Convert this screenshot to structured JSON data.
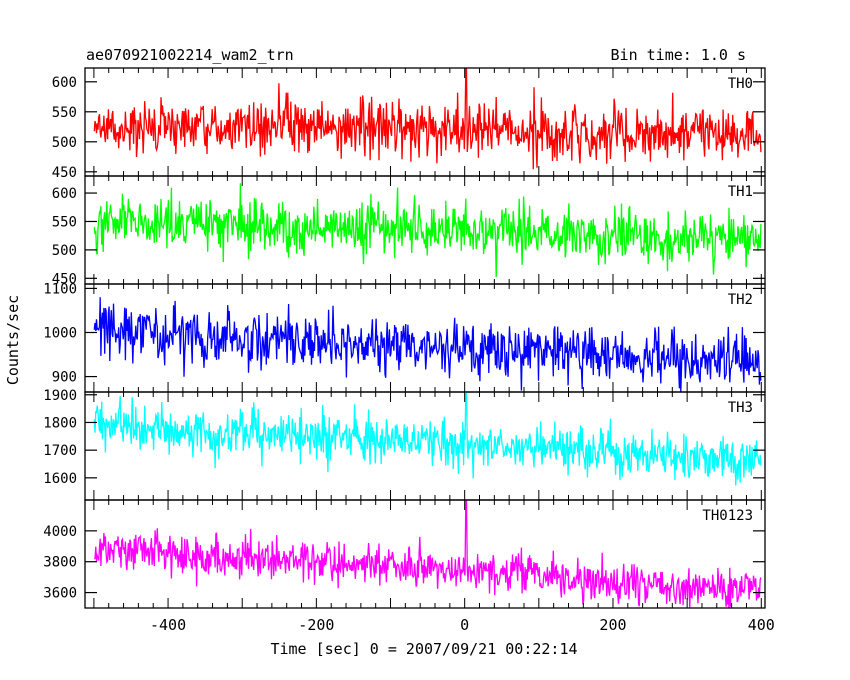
{
  "chart_data": {
    "type": "line",
    "title": "ae070921002214_wam2_trn",
    "bin_time": "Bin time: 1.0 s",
    "xlabel": "Time [sec] 0 = 2007/09/21 00:22:14",
    "ylabel": "Counts/sec",
    "xlim": [
      -512,
      405
    ],
    "x_ticks": [
      -400,
      -200,
      0,
      200,
      400
    ],
    "grid": false,
    "panels": [
      {
        "name": "TH0",
        "color": "#ff0000",
        "ylim": [
          443,
          623
        ],
        "y_ticks": [
          450,
          500,
          550,
          600
        ],
        "mean_start": 530,
        "mean_end": 510,
        "noise": 23,
        "spikes": [
          {
            "x": 2,
            "y": 623
          }
        ]
      },
      {
        "name": "TH1",
        "color": "#00ff00",
        "ylim": [
          440,
          630
        ],
        "y_ticks": [
          450,
          500,
          550,
          600
        ],
        "mean_start": 550,
        "mean_end": 518,
        "noise": 23,
        "spikes": []
      },
      {
        "name": "TH2",
        "color": "#0000ff",
        "ylim": [
          865,
          1110
        ],
        "y_ticks": [
          900,
          1000,
          1100
        ],
        "mean_start": 1005,
        "mean_end": 930,
        "noise": 31,
        "spikes": []
      },
      {
        "name": "TH3",
        "color": "#00ffff",
        "ylim": [
          1520,
          1910
        ],
        "y_ticks": [
          1600,
          1700,
          1800,
          1900
        ],
        "mean_start": 1790,
        "mean_end": 1665,
        "noise": 42,
        "spikes": [
          {
            "x": 2,
            "y": 1910
          }
        ]
      },
      {
        "name": "TH0123",
        "color": "#ff00ff",
        "ylim": [
          3500,
          4200
        ],
        "y_ticks": [
          3600,
          3800,
          4000
        ],
        "mean_start": 3880,
        "mean_end": 3620,
        "noise": 65,
        "spikes": [
          {
            "x": 2,
            "y": 4200
          }
        ]
      }
    ]
  }
}
